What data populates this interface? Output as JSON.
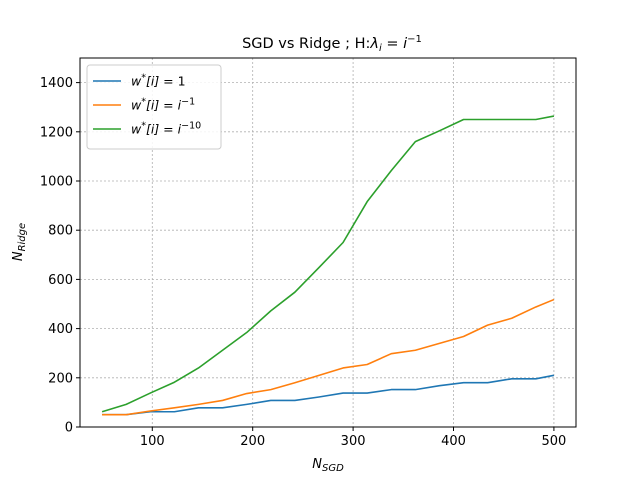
{
  "chart_data": {
    "type": "line",
    "title_main": "SGD vs Ridge ; H:",
    "title_lambda": "λ",
    "title_sub_i": "i",
    "title_eq": " = ",
    "title_rhs_i": "i",
    "title_sup": "−1",
    "xlabel_main": "N",
    "xlabel_sub": "SGD",
    "ylabel_main": "N",
    "ylabel_sub": "Ridge",
    "xlim": [
      28,
      522
    ],
    "ylim": [
      0,
      1500
    ],
    "xticks": [
      100,
      200,
      300,
      400,
      500
    ],
    "yticks": [
      0,
      200,
      400,
      600,
      800,
      1000,
      1200,
      1400
    ],
    "grid": true,
    "legend_position": "upper-left",
    "x": [
      50,
      74,
      98,
      122,
      146,
      170,
      194,
      218,
      242,
      266,
      290,
      314,
      338,
      362,
      386,
      410,
      434,
      458,
      482,
      500
    ],
    "series": [
      {
        "legend_lhs": "w",
        "legend_sup": "*",
        "legend_idx": "[i] = ",
        "legend_rhs": "1",
        "legend_rhs_sup": "",
        "color": "#1f77b4",
        "values": [
          50,
          50,
          62,
          62,
          78,
          78,
          92,
          108,
          108,
          122,
          138,
          138,
          152,
          152,
          168,
          180,
          180,
          196,
          196,
          210
        ]
      },
      {
        "legend_lhs": "w",
        "legend_sup": "*",
        "legend_idx": "[i] = ",
        "legend_rhs": "i",
        "legend_rhs_sup": "−1",
        "color": "#ff7f0e",
        "values": [
          50,
          50,
          65,
          78,
          92,
          108,
          136,
          152,
          180,
          210,
          240,
          254,
          298,
          312,
          340,
          368,
          414,
          442,
          488,
          518
        ]
      },
      {
        "legend_lhs": "w",
        "legend_sup": "*",
        "legend_idx": "[i] = ",
        "legend_rhs": "i",
        "legend_rhs_sup": "−10",
        "color": "#2ca02c",
        "values": [
          62,
          92,
          138,
          182,
          240,
          312,
          384,
          472,
          548,
          648,
          750,
          916,
          1042,
          1160,
          1204,
          1250,
          1250,
          1250,
          1250,
          1264
        ]
      }
    ]
  }
}
